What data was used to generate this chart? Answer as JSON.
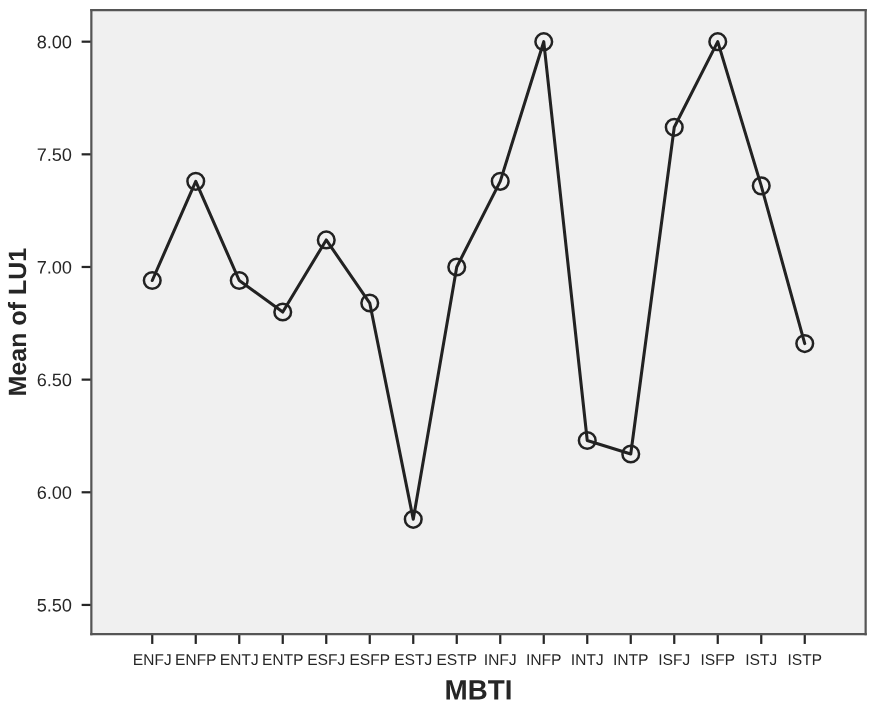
{
  "chart_data": {
    "type": "line",
    "xlabel": "MBTI",
    "ylabel": "Mean of LU1",
    "categories": [
      "ENFJ",
      "ENFP",
      "ENTJ",
      "ENTP",
      "ESFJ",
      "ESFP",
      "ESTJ",
      "ESTP",
      "INFJ",
      "INFP",
      "INTJ",
      "INTP",
      "ISFJ",
      "ISFP",
      "ISTJ",
      "ISTP"
    ],
    "series": [
      {
        "color": "#222222",
        "values": [
          6.94,
          7.38,
          6.94,
          6.8,
          7.12,
          6.84,
          5.88,
          7.0,
          7.38,
          8.0,
          6.23,
          6.17,
          7.62,
          8.0,
          7.36,
          6.66
        ]
      }
    ],
    "ylim": [
      5.37,
      8.14
    ],
    "yticks": [
      {
        "value": 5.5,
        "label": "5.50"
      },
      {
        "value": 6.0,
        "label": "6.00"
      },
      {
        "value": 6.5,
        "label": "6.50"
      },
      {
        "value": 7.0,
        "label": "7.00"
      },
      {
        "value": 7.5,
        "label": "7.50"
      },
      {
        "value": 8.0,
        "label": "8.00"
      }
    ],
    "marker": "circle",
    "line_style": "solid",
    "grid": false,
    "legend": false
  }
}
